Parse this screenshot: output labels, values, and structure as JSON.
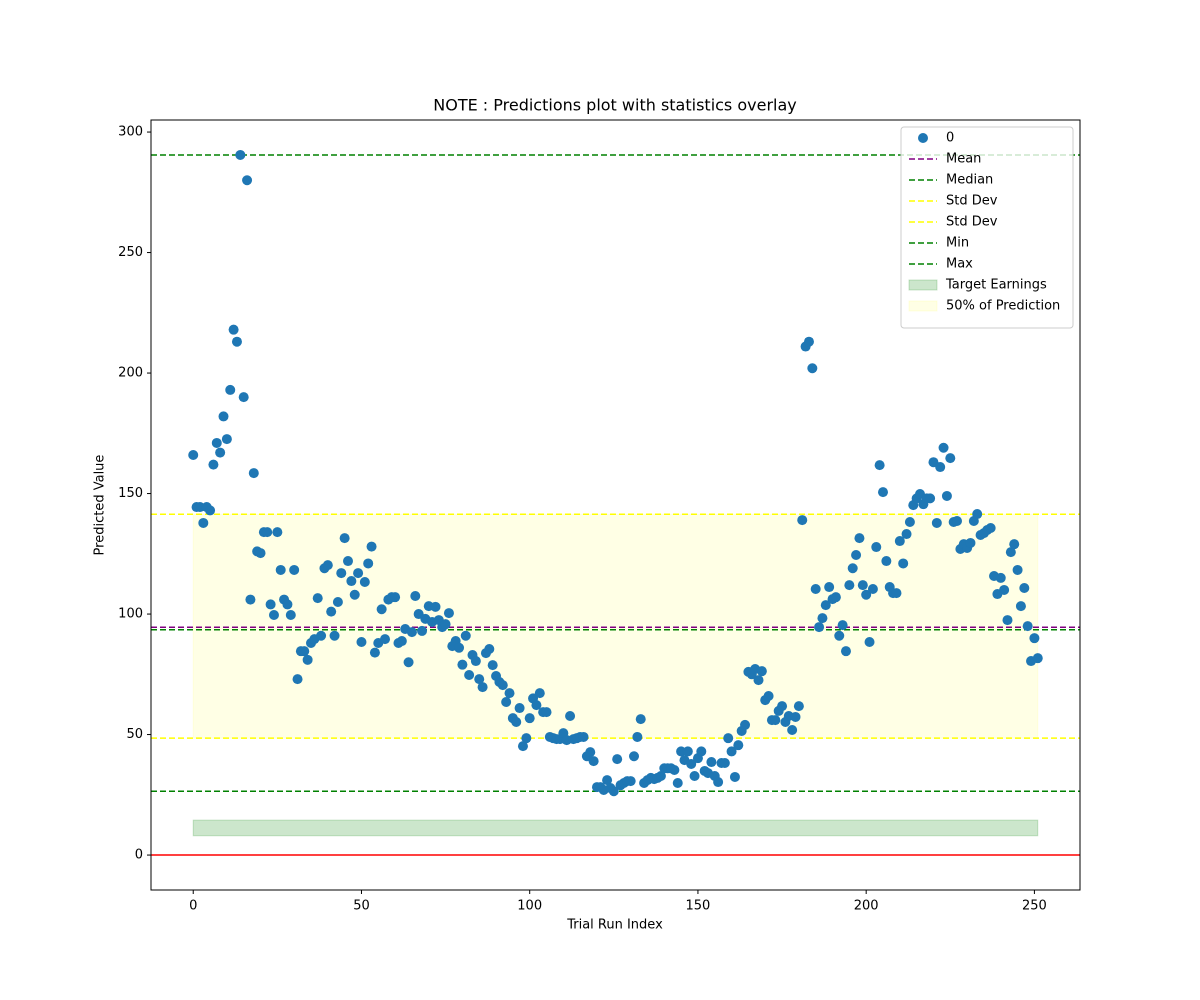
{
  "chart_data": {
    "type": "scatter",
    "title": "NOTE : Predictions plot with statistics overlay",
    "xlabel": "Trial Run Index",
    "ylabel": "Predicted Value",
    "x": [
      0,
      1,
      2,
      3,
      4,
      5,
      6,
      7,
      8,
      9,
      10,
      11,
      12,
      13,
      14,
      15,
      16,
      17,
      18,
      19,
      20,
      21,
      22,
      23,
      24,
      25,
      26,
      27,
      28,
      29,
      30,
      31,
      32,
      33,
      34,
      35,
      36,
      37,
      38,
      39,
      40,
      41,
      42,
      43,
      44,
      45,
      46,
      47,
      48,
      49,
      50,
      51,
      52,
      53,
      54,
      55,
      56,
      57,
      58,
      59,
      60,
      61,
      62,
      63,
      64,
      65,
      66,
      67,
      68,
      69,
      70,
      71,
      72,
      73,
      74,
      75,
      76,
      77,
      78,
      79,
      80,
      81,
      82,
      83,
      84,
      85,
      86,
      87,
      88,
      89,
      90,
      91,
      92,
      93,
      94,
      95,
      96,
      97,
      98,
      99,
      100,
      101,
      102,
      103,
      104,
      105,
      106,
      107,
      108,
      109,
      110,
      111,
      112,
      113,
      114,
      115,
      116,
      117,
      118,
      119,
      120,
      121,
      122,
      123,
      124,
      125,
      126,
      127,
      128,
      129,
      130,
      131,
      132,
      133,
      134,
      135,
      136,
      137,
      138,
      139,
      140,
      141,
      142,
      143,
      144,
      145,
      146,
      147,
      148,
      149,
      150,
      151,
      152,
      153,
      154,
      155,
      156,
      157,
      158,
      159,
      160,
      161,
      162,
      163,
      164,
      165,
      166,
      167,
      168,
      169,
      170,
      171,
      172,
      173,
      174,
      175,
      176,
      177,
      178,
      179,
      180,
      181,
      182,
      183,
      184,
      185,
      186,
      187,
      188,
      189,
      190,
      191,
      192,
      193,
      194,
      195,
      196,
      197,
      198,
      199,
      200,
      201,
      202,
      203,
      204,
      205,
      206,
      207,
      208,
      209,
      210,
      211,
      212,
      213,
      214,
      215,
      216,
      217,
      218,
      219,
      220,
      221,
      222,
      223,
      224,
      225,
      226,
      227,
      228,
      229,
      230,
      231,
      232,
      233,
      234,
      235,
      236,
      237,
      238,
      239,
      240,
      241,
      242,
      243,
      244,
      245,
      246,
      247,
      248,
      249,
      250,
      251
    ],
    "series": [
      {
        "name": "0",
        "color": "#1f77b4",
        "values": [
          166,
          144.4,
          144.4,
          137.8,
          144.4,
          143,
          162,
          171,
          167,
          182,
          172.6,
          193,
          218,
          213,
          290.5,
          190,
          280,
          106,
          158.5,
          126,
          125.3,
          134,
          134,
          104,
          99.6,
          134,
          118.3,
          106,
          104,
          99.6,
          118.3,
          73,
          84.6,
          84.6,
          81,
          88,
          89.6,
          106.6,
          91,
          119,
          120.3,
          101,
          91,
          105,
          117,
          131.5,
          122,
          113.7,
          108,
          117,
          88.4,
          113.3,
          121,
          128,
          84,
          88,
          102,
          89.6,
          106,
          107,
          107,
          88,
          88.8,
          93.8,
          80,
          92.5,
          107.5,
          100,
          93,
          98,
          103.3,
          96.7,
          103,
          97.5,
          94.6,
          95.8,
          100.4,
          86.7,
          88.8,
          86,
          79,
          91,
          74.7,
          83,
          80.5,
          73,
          69.7,
          83.8,
          85.5,
          78.8,
          74.3,
          71.8,
          70.5,
          63.5,
          67.2,
          56.8,
          55.2,
          61,
          45.2,
          48.5,
          56.8,
          65,
          62.2,
          67.2,
          59.3,
          59.3,
          49,
          48.5,
          48.1,
          48.1,
          50.6,
          47.7,
          57.7,
          48.1,
          48.5,
          49,
          49,
          41,
          42.7,
          39,
          28.2,
          28.2,
          27,
          31.1,
          27.8,
          26.5,
          39.8,
          29,
          29.9,
          30.7,
          30.7,
          41,
          49,
          56.4,
          29.9,
          31.1,
          32,
          31.5,
          32,
          32.8,
          36,
          36,
          36,
          35.3,
          29.9,
          43,
          39.4,
          43,
          37.8,
          32.8,
          40.2,
          43,
          34.9,
          34,
          38.6,
          32.8,
          30.3,
          38.2,
          38.2,
          48.5,
          43,
          32.4,
          45.6,
          51.5,
          54,
          76,
          75,
          77.2,
          72.6,
          76.3,
          64.3,
          66,
          56,
          56,
          59.8,
          61.8,
          55.2,
          57.7,
          51.9,
          57.3,
          61.8,
          139,
          211,
          213,
          202,
          110.4,
          94.6,
          98.3,
          103.7,
          111.2,
          106.2,
          107,
          91,
          95.4,
          84.6,
          112,
          119,
          124.5,
          131.5,
          112,
          108,
          88.4,
          110.4,
          127.8,
          161.8,
          150.6,
          122,
          111.2,
          108.7,
          108.7,
          130.3,
          121,
          133.2,
          138.2,
          145.2,
          148,
          149.8,
          145.6,
          148,
          148,
          163,
          137.8,
          161,
          169,
          149,
          164.7,
          138.2,
          138.6,
          127,
          129,
          127.4,
          129.5,
          138.6,
          141.5,
          132.8,
          133.6,
          134.9,
          135.7,
          115.8,
          108.3,
          115,
          110,
          97.5,
          125.7,
          129,
          118.3,
          103.3,
          110.8,
          95,
          80.5,
          90,
          81.7
        ]
      }
    ],
    "hlines": [
      {
        "name": "Mean",
        "value": 94.5,
        "color": "purple"
      },
      {
        "name": "Median",
        "value": 93.5,
        "color": "green"
      },
      {
        "name": "Std Dev",
        "value": 141.4,
        "color": "yellow"
      },
      {
        "name": "Std Dev",
        "value": 48.5,
        "color": "yellow"
      },
      {
        "name": "Min",
        "value": 26.5,
        "color": "green"
      },
      {
        "name": "Max",
        "value": 290.5,
        "color": "green"
      }
    ],
    "bands": [
      {
        "name": "Target Earnings",
        "x": [
          0,
          251
        ],
        "y": [
          8,
          14.5
        ],
        "color": "green",
        "opacity": 0.2
      },
      {
        "name": "50% of Prediction",
        "x": [
          0,
          251
        ],
        "y": [
          48.5,
          141.4
        ],
        "color": "yellow",
        "opacity": 0.1
      }
    ],
    "zero_line": {
      "value": 0,
      "color": "red"
    },
    "xlim": [
      -12.55,
      263.55
    ],
    "ylim": [
      -14.5,
      305
    ],
    "xticks": [
      0,
      50,
      100,
      150,
      200,
      250
    ],
    "yticks": [
      0,
      50,
      100,
      150,
      200,
      250,
      300
    ],
    "legend": "upper right"
  }
}
